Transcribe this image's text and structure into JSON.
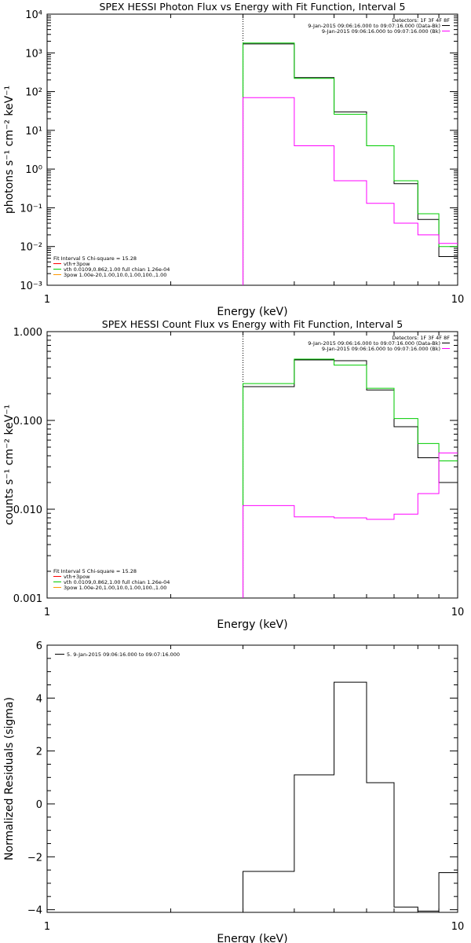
{
  "chart_data": [
    {
      "type": "line",
      "title": "SPEX HESSI Photon Flux vs Energy with Fit Function, Interval 5",
      "xlabel": "Energy (keV)",
      "ylabel": "photons s⁻¹ cm⁻² keV⁻¹",
      "xscale": "log",
      "yscale": "log",
      "xlim": [
        1,
        10
      ],
      "ylim": [
        0.001,
        10000
      ],
      "xticks": [
        {
          "v": 1,
          "label": "1"
        },
        {
          "v": 10,
          "label": "10"
        }
      ],
      "yticks": [
        {
          "v": 0.001,
          "label": "10⁻³"
        },
        {
          "v": 0.01,
          "label": "10⁻²"
        },
        {
          "v": 0.1,
          "label": "10⁻¹"
        },
        {
          "v": 1,
          "label": "10⁰"
        },
        {
          "v": 10,
          "label": "10¹"
        },
        {
          "v": 100,
          "label": "10²"
        },
        {
          "v": 1000,
          "label": "10³"
        },
        {
          "v": 10000,
          "label": "10⁴"
        }
      ],
      "vline": 3.0,
      "edges": [
        3.0,
        4.0,
        5.0,
        6.0,
        7.0,
        8.0,
        9.0,
        10.0
      ],
      "series": [
        {
          "color": "#000000",
          "values": [
            1700,
            230,
            30,
            4.0,
            0.42,
            0.05,
            0.0055
          ]
        },
        {
          "color": "#00cc00",
          "values": [
            1800,
            220,
            26,
            4.0,
            0.5,
            0.07,
            0.01
          ]
        },
        {
          "color": "#ff00ff",
          "values": [
            70,
            4.0,
            0.5,
            0.13,
            0.04,
            0.02,
            0.012
          ]
        }
      ],
      "legend_tr": {
        "head": "Detectors: 1F 3F 4F 8F",
        "lines": [
          {
            "text": "9-Jan-2015 09:06:16.000 to 09:07:16.000 (Data-Bk)",
            "color": "#000000"
          },
          {
            "text": "9-Jan-2015 09:06:16.000 to 09:07:16.000 (Bk)",
            "color": "#ff00ff"
          }
        ]
      },
      "legend_bl": {
        "head": "Fit Interval 5   Chi-square = 15.28",
        "lines": [
          {
            "text": "vth+3pow",
            "color": "#ff0000"
          },
          {
            "text": "vth 0.0109,0.862,1.00  full chian 1.26e-04",
            "color": "#00cc00"
          },
          {
            "text": "3pow 1.00e-20,1.00,10.0,1.00,100.,1.00",
            "color": "#ff9900"
          }
        ]
      }
    },
    {
      "type": "line",
      "title": "SPEX HESSI Count Flux vs Energy with Fit Function, Interval 5",
      "xlabel": "Energy (keV)",
      "ylabel": "counts s⁻¹ cm⁻² keV⁻¹",
      "xscale": "log",
      "yscale": "log",
      "xlim": [
        1,
        10
      ],
      "ylim": [
        0.001,
        1.0
      ],
      "xticks": [
        {
          "v": 1,
          "label": "1"
        },
        {
          "v": 10,
          "label": "10"
        }
      ],
      "yticks": [
        {
          "v": 0.001,
          "label": "0.001"
        },
        {
          "v": 0.01,
          "label": "0.010"
        },
        {
          "v": 0.1,
          "label": "0.100"
        },
        {
          "v": 1.0,
          "label": "1.000"
        }
      ],
      "vline": 3.0,
      "edges": [
        3.0,
        4.0,
        5.0,
        6.0,
        7.0,
        8.0,
        9.0,
        10.0
      ],
      "series": [
        {
          "color": "#000000",
          "values": [
            0.24,
            0.48,
            0.47,
            0.22,
            0.085,
            0.038,
            0.02
          ]
        },
        {
          "color": "#00cc00",
          "values": [
            0.26,
            0.49,
            0.42,
            0.23,
            0.105,
            0.055,
            0.035
          ]
        },
        {
          "color": "#ff00ff",
          "values": [
            0.011,
            0.0082,
            0.008,
            0.0077,
            0.0088,
            0.015,
            0.043
          ]
        }
      ],
      "legend_tr": {
        "head": "Detectors: 1F 3F 4F 8F",
        "lines": [
          {
            "text": "9-Jan-2015 09:06:16.000 to 09:07:16.000 (Data-Bk)",
            "color": "#000000"
          },
          {
            "text": "9-Jan-2015 09:06:16.000 to 09:07:16.000 (Bk)",
            "color": "#ff00ff"
          }
        ]
      },
      "legend_bl": {
        "head": "Fit Interval 5   Chi-square = 15.28",
        "lines": [
          {
            "text": "vth+3pow",
            "color": "#ff0000"
          },
          {
            "text": "vth 0.0109,0.862,1.00  full chian 1.26e-04",
            "color": "#00cc00"
          },
          {
            "text": "3pow 1.00e-20,1.00,10.0,1.00,100.,1.00",
            "color": "#ff9900"
          }
        ]
      }
    },
    {
      "type": "line",
      "title": "",
      "xlabel": "Energy (keV)",
      "ylabel": "Normalized Residuals (sigma)",
      "xscale": "log",
      "yscale": "linear",
      "xlim": [
        1,
        10
      ],
      "ylim": [
        -4.1,
        6
      ],
      "xticks": [
        {
          "v": 1,
          "label": "1"
        },
        {
          "v": 10,
          "label": "10"
        }
      ],
      "yticks": [
        {
          "v": -4,
          "label": "−4"
        },
        {
          "v": -2,
          "label": "−2"
        },
        {
          "v": 0,
          "label": "0"
        },
        {
          "v": 2,
          "label": "2"
        },
        {
          "v": 4,
          "label": "4"
        },
        {
          "v": 6,
          "label": "6"
        }
      ],
      "vline": null,
      "edges": [
        3.0,
        4.0,
        5.0,
        6.0,
        7.0,
        8.0,
        9.0,
        10.0
      ],
      "series": [
        {
          "color": "#000000",
          "values": [
            -2.55,
            1.1,
            4.6,
            0.8,
            -3.9,
            -4.05,
            -2.6
          ]
        }
      ],
      "legend_tl": {
        "lines": [
          {
            "text": "5.  9-Jan-2015 09:06:16.000 to 09:07:16.000",
            "color": "#000000"
          }
        ]
      }
    }
  ]
}
